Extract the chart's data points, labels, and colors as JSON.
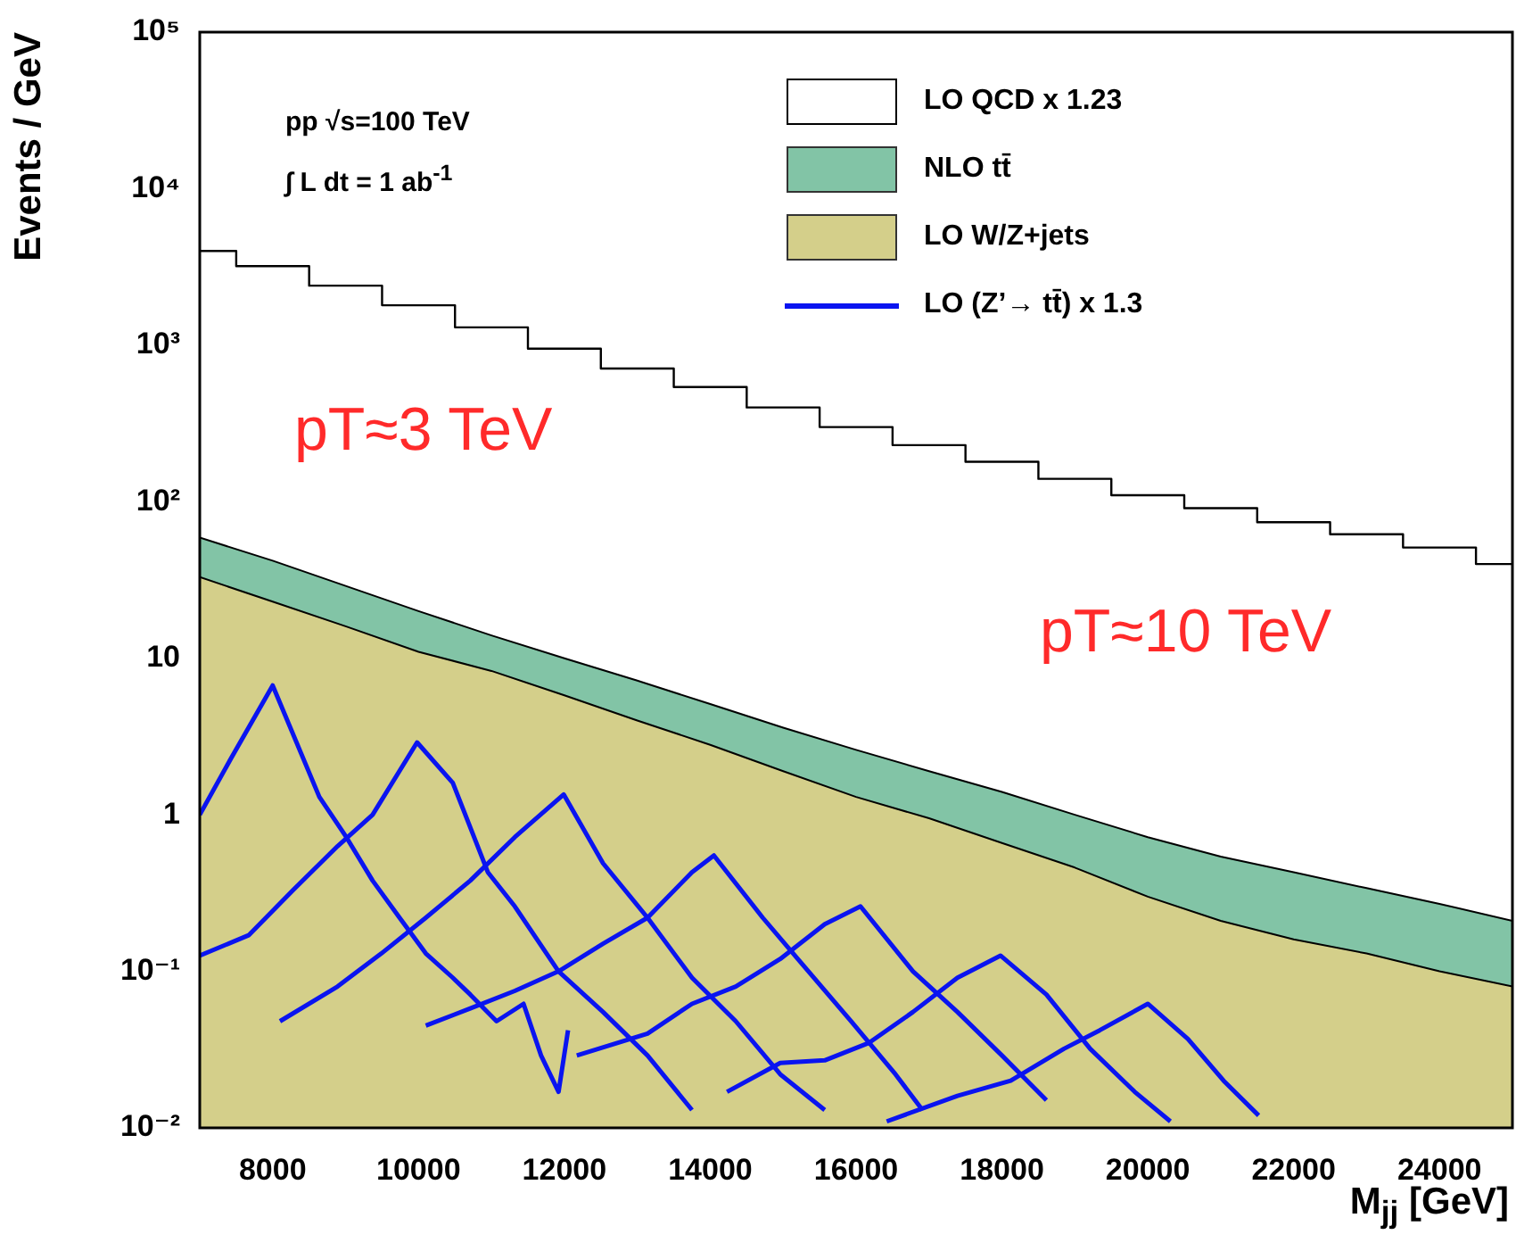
{
  "chart_data": {
    "type": "line",
    "xlabel": "M$_{jj}$ [GeV]",
    "ylabel": "Events / GeV",
    "log": "y",
    "xlim": [
      7000,
      25000
    ],
    "xticks": [
      8000,
      10000,
      12000,
      14000,
      16000,
      18000,
      20000,
      22000,
      24000
    ],
    "ylim": [
      0.01,
      100000
    ],
    "yticks": [
      {
        "value": 0.01,
        "label": "10⁻²"
      },
      {
        "value": 0.1,
        "label": "10⁻¹"
      },
      {
        "value": 1,
        "label": "1"
      },
      {
        "value": 10,
        "label": "10"
      },
      {
        "value": 100,
        "label": "10²"
      },
      {
        "value": 1000,
        "label": "10³"
      },
      {
        "value": 10000,
        "label": "10⁴"
      },
      {
        "value": 100000,
        "label": "10⁵"
      }
    ],
    "legend": "top right",
    "annotations": [
      "pp  √s=100 TeV",
      "∫ L dt =  1 ab$^{-1}$",
      "pT≈3 TeV",
      "pT≈10 TeV"
    ],
    "x": [
      7000,
      8000,
      9000,
      10000,
      11000,
      12000,
      13000,
      14000,
      15000,
      16000,
      17000,
      18000,
      19000,
      20000,
      21000,
      22000,
      23000,
      24000,
      25000
    ],
    "series": [
      {
        "name": "LO QCD x 1.23",
        "type": "step",
        "color": "#000000",
        "values": [
          4000,
          3200,
          2400,
          1800,
          1300,
          950,
          710,
          540,
          400,
          300,
          230,
          180,
          140,
          110,
          91,
          74,
          62,
          51,
          40
        ]
      },
      {
        "name": "NLO tt̄",
        "type": "area",
        "color": "#82c4a6",
        "values": [
          59,
          42,
          29,
          20,
          14,
          10,
          7.2,
          5.1,
          3.6,
          2.6,
          1.9,
          1.4,
          1.0,
          0.72,
          0.54,
          0.43,
          0.34,
          0.27,
          0.21
        ]
      },
      {
        "name": "LO W/Z+jets",
        "type": "area",
        "color": "#d4cf8a",
        "values": [
          33,
          23,
          16,
          11,
          8.3,
          5.8,
          4.0,
          2.8,
          1.9,
          1.3,
          0.95,
          0.66,
          0.46,
          0.3,
          0.21,
          0.16,
          0.13,
          0.1,
          0.08
        ]
      },
      {
        "name": "LO (Z’→ tt̄) x 1.3",
        "type": "line",
        "color": "#0a14f0",
        "x": [
          7000,
          7430,
          8000,
          8640,
          9010,
          9370,
          9740,
          10100,
          10470,
          10710,
          11070,
          11440,
          11680,
          11920,
          12050
        ],
        "values": [
          1.0,
          2.3,
          6.7,
          1.3,
          0.72,
          0.38,
          0.22,
          0.13,
          0.091,
          0.071,
          0.048,
          0.062,
          0.029,
          0.017,
          0.042
        ]
      },
      {
        "type": "line",
        "color": "#0a14f0",
        "x": [
          7000,
          7670,
          8280,
          8890,
          9370,
          9980,
          10470,
          10950,
          11320,
          11920,
          12530,
          13140,
          13750
        ],
        "values": [
          0.126,
          0.17,
          0.33,
          0.63,
          1.0,
          2.9,
          1.6,
          0.43,
          0.26,
          0.1,
          0.055,
          0.029,
          0.013
        ]
      },
      {
        "type": "line",
        "color": "#0a14f0",
        "x": [
          8100,
          8890,
          9490,
          10100,
          10710,
          11320,
          11990,
          12530,
          13140,
          13750,
          14350,
          14960,
          15570
        ],
        "values": [
          0.048,
          0.08,
          0.13,
          0.22,
          0.38,
          0.72,
          1.35,
          0.49,
          0.22,
          0.091,
          0.048,
          0.022,
          0.013
        ]
      },
      {
        "type": "line",
        "color": "#0a14f0",
        "x": [
          10100,
          10710,
          11320,
          11920,
          12530,
          13140,
          13750,
          14050,
          14720,
          15200,
          15930,
          16540,
          16910
        ],
        "values": [
          0.045,
          0.058,
          0.075,
          0.1,
          0.15,
          0.22,
          0.43,
          0.55,
          0.22,
          0.12,
          0.048,
          0.022,
          0.013
        ]
      },
      {
        "type": "line",
        "color": "#0a14f0",
        "x": [
          12170,
          13140,
          13750,
          14350,
          14960,
          15570,
          16060,
          16780,
          17390,
          18000,
          18610
        ],
        "values": [
          0.029,
          0.04,
          0.062,
          0.08,
          0.12,
          0.2,
          0.26,
          0.1,
          0.055,
          0.029,
          0.015
        ]
      },
      {
        "type": "line",
        "color": "#0a14f0",
        "x": [
          14230,
          14960,
          15570,
          16180,
          16780,
          17390,
          17980,
          18610,
          19210,
          19820,
          20310
        ],
        "values": [
          0.017,
          0.026,
          0.027,
          0.035,
          0.055,
          0.091,
          0.126,
          0.071,
          0.032,
          0.017,
          0.011
        ]
      },
      {
        "type": "line",
        "color": "#0a14f0",
        "x": [
          16420,
          17390,
          18120,
          18850,
          19340,
          20000,
          20550,
          21040,
          21520
        ],
        "values": [
          0.011,
          0.016,
          0.02,
          0.032,
          0.042,
          0.062,
          0.037,
          0.02,
          0.012
        ]
      }
    ]
  }
}
